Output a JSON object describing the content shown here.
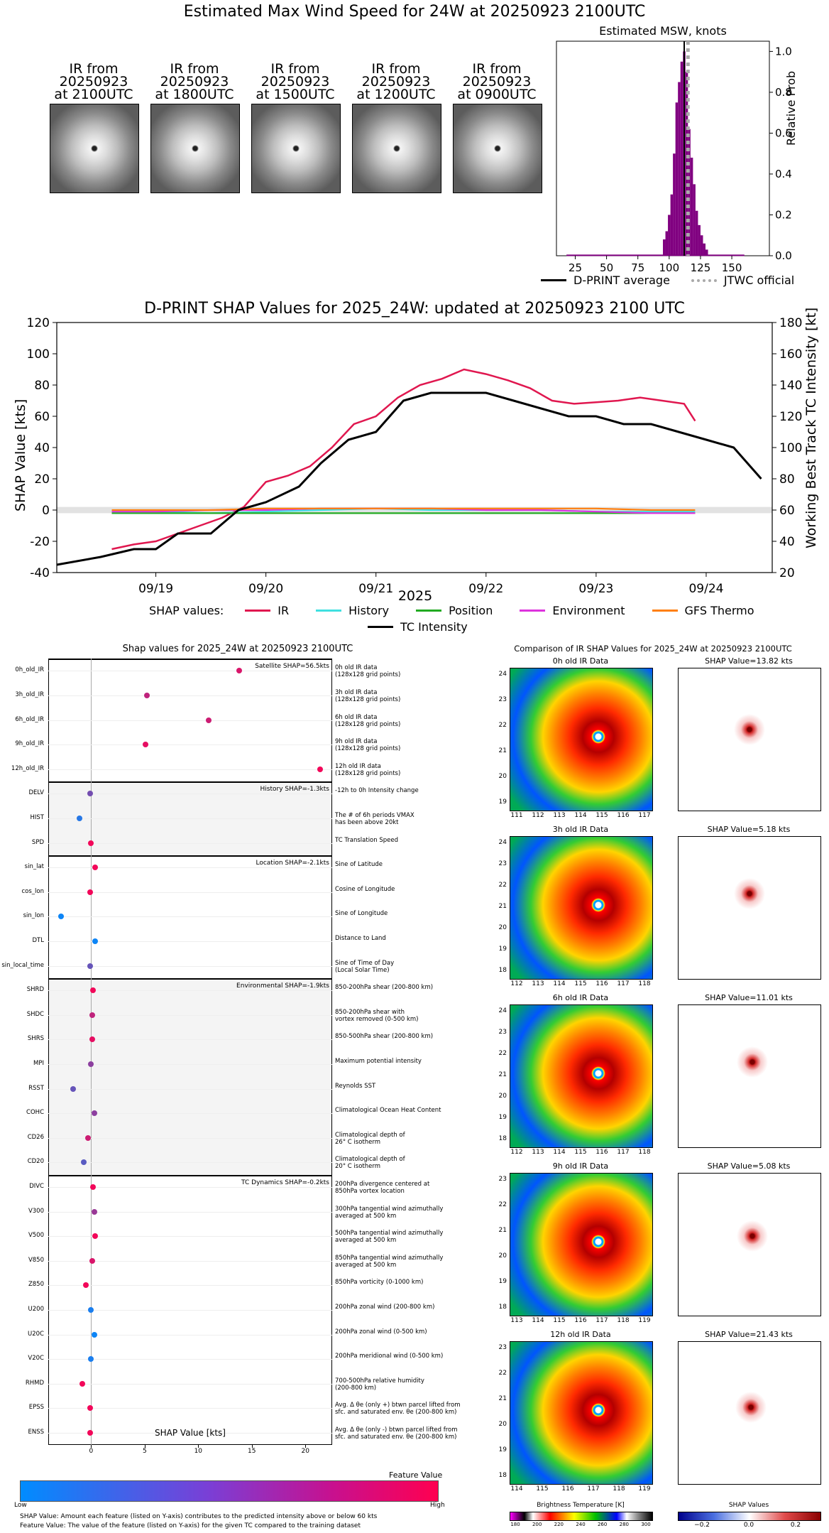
{
  "top": {
    "title": "Estimated Max Wind Speed for 24W at 20250923 2100UTC",
    "thumbnails": [
      {
        "line1": "IR from",
        "line2": "20250923",
        "line3": "at 2100UTC"
      },
      {
        "line1": "IR from",
        "line2": "20250923",
        "line3": "at 1800UTC"
      },
      {
        "line1": "IR from",
        "line2": "20250923",
        "line3": "at 1500UTC"
      },
      {
        "line1": "IR from",
        "line2": "20250923",
        "line3": "at 1200UTC"
      },
      {
        "line1": "IR from",
        "line2": "20250923",
        "line3": "at 0900UTC"
      }
    ],
    "hist_title": "Estimated MSW, knots",
    "hist_ylabel": "Relative Prob",
    "hist_xticks": [
      "25",
      "50",
      "75",
      "100",
      "125",
      "150"
    ],
    "hist_yticks": [
      "0.0",
      "0.2",
      "0.4",
      "0.6",
      "0.8",
      "1.0"
    ],
    "legend_avg": "D-PRINT average",
    "legend_jtwc": "JTWC official",
    "colors": {
      "bar": "#800080",
      "avg": "#000000",
      "jtwc": "#aaaaaa"
    }
  },
  "chart_data": [
    {
      "type": "bar",
      "title": "Estimated MSW, knots",
      "xlabel": "",
      "ylabel": "Relative Prob",
      "xlim": [
        10,
        180
      ],
      "ylim": [
        0,
        1.05
      ],
      "x": [
        96,
        98,
        100,
        102,
        104,
        106,
        108,
        110,
        112,
        114,
        116,
        118,
        120,
        122,
        124,
        126,
        128,
        130
      ],
      "values": [
        0.08,
        0.12,
        0.2,
        0.3,
        0.5,
        0.75,
        0.85,
        0.95,
        1.0,
        0.9,
        0.62,
        0.48,
        0.35,
        0.22,
        0.15,
        0.1,
        0.06,
        0.03
      ],
      "avg_line": 112,
      "jtwc_line": 115
    },
    {
      "type": "line",
      "title": "D-PRINT SHAP Values for 2025_24W: updated at 20250923 2100 UTC",
      "xlabel": "2025",
      "ylabel": "SHAP Value [kts]",
      "y2label": "Working Best Track TC Intensity [kt]",
      "xlim": [
        18.1,
        24.6
      ],
      "ylim": [
        -40,
        120
      ],
      "y2lim": [
        20,
        180
      ],
      "xticks": [
        "09/19",
        "09/20",
        "09/21",
        "09/22",
        "09/23",
        "09/24"
      ],
      "yticks": [
        "-40",
        "-20",
        "0",
        "20",
        "40",
        "60",
        "80",
        "100",
        "120"
      ],
      "y2ticks": [
        "20",
        "40",
        "60",
        "80",
        "100",
        "120",
        "140",
        "160",
        "180"
      ],
      "series": [
        {
          "name": "IR",
          "color": "#e0174f",
          "x": [
            18.6,
            18.8,
            19.0,
            19.2,
            19.4,
            19.6,
            19.8,
            20.0,
            20.2,
            20.4,
            20.6,
            20.8,
            21.0,
            21.2,
            21.4,
            21.6,
            21.8,
            22.0,
            22.2,
            22.4,
            22.6,
            22.8,
            23.0,
            23.2,
            23.4,
            23.6,
            23.8,
            23.9
          ],
          "y": [
            -25,
            -22,
            -20,
            -15,
            -10,
            -5,
            2,
            18,
            22,
            28,
            40,
            55,
            60,
            72,
            80,
            84,
            90,
            87,
            83,
            78,
            70,
            68,
            69,
            70,
            72,
            70,
            68,
            57
          ]
        },
        {
          "name": "History",
          "color": "#40e0e0",
          "x": [
            18.6,
            19.0,
            19.5,
            20.0,
            20.5,
            21.0,
            21.5,
            22.0,
            22.5,
            23.0,
            23.5,
            23.9
          ],
          "y": [
            -1,
            -1,
            -2,
            -1,
            0,
            1,
            0,
            0,
            0,
            -1,
            -1,
            -1
          ]
        },
        {
          "name": "Position",
          "color": "#22aa22",
          "x": [
            18.6,
            19.0,
            19.5,
            20.0,
            20.5,
            21.0,
            21.5,
            22.0,
            22.5,
            23.0,
            23.5,
            23.9
          ],
          "y": [
            -2,
            -2,
            -2,
            -2,
            -2,
            -2,
            -2,
            -2,
            -2,
            -2,
            -2,
            -2
          ]
        },
        {
          "name": "Environment",
          "color": "#dd33dd",
          "x": [
            18.6,
            19.0,
            19.5,
            20.0,
            20.5,
            21.0,
            21.5,
            22.0,
            22.5,
            23.0,
            23.5,
            23.9
          ],
          "y": [
            -1,
            -1,
            0,
            0,
            1,
            1,
            1,
            0,
            0,
            -1,
            -2,
            -2
          ]
        },
        {
          "name": "GFS Thermo",
          "color": "#ff7f0e",
          "x": [
            18.6,
            19.0,
            19.5,
            20.0,
            20.5,
            21.0,
            21.5,
            22.0,
            22.5,
            23.0,
            23.5,
            23.9
          ],
          "y": [
            0,
            0,
            0,
            1,
            1,
            1,
            1,
            1,
            1,
            1,
            0,
            0
          ]
        },
        {
          "name": "TC Intensity",
          "color": "#000000",
          "axis": "right",
          "x": [
            18.1,
            18.5,
            18.8,
            19.0,
            19.2,
            19.5,
            19.75,
            20.0,
            20.3,
            20.5,
            20.75,
            21.0,
            21.25,
            21.5,
            21.75,
            22.0,
            22.25,
            22.5,
            22.75,
            23.0,
            23.25,
            23.5,
            23.75,
            24.0,
            24.25,
            24.5
          ],
          "y": [
            25,
            30,
            35,
            35,
            45,
            45,
            60,
            65,
            75,
            90,
            105,
            110,
            130,
            135,
            135,
            135,
            130,
            125,
            120,
            120,
            115,
            115,
            110,
            105,
            100,
            80
          ]
        }
      ]
    }
  ],
  "mid": {
    "legend_prefix": "SHAP values:",
    "legend_items": [
      "IR",
      "History",
      "Position",
      "Environment",
      "GFS Thermo"
    ],
    "legend_tc": "TC Intensity"
  },
  "bottom": {
    "left_title": "Shap values for 2025_24W at 20250923 2100UTC",
    "right_title": "Comparison of IR SHAP Values for 2025_24W at 20250923 2100UTC",
    "xlabel": "SHAP Value [kts]",
    "xticks": [
      "0",
      "5",
      "10",
      "15",
      "20"
    ],
    "colorbar_title": "Feature Value",
    "colorbar_low": "Low",
    "colorbar_high": "High",
    "footnote1": "SHAP Value: Amount each feature (listed on Y-axis) contributes to the predicted intensity above or below 60 kts",
    "footnote2": "Feature Value: The value of the feature (listed on Y-axis) for the given TC compared to the training dataset",
    "groups": [
      {
        "label": "Satellite SHAP=56.5kts"
      },
      {
        "label": "History SHAP=-1.3kts"
      },
      {
        "label": "Location SHAP=-2.1kts"
      },
      {
        "label": "Environmental SHAP=-1.9kts"
      },
      {
        "label": "TC Dynamics SHAP=-0.2kts"
      }
    ],
    "features": [
      {
        "name": "0h_old_IR",
        "value": 13.8,
        "fv": 0.85,
        "desc": "0h old IR data\n(128x128 grid points)"
      },
      {
        "name": "3h_old_IR",
        "value": 5.2,
        "fv": 0.75,
        "desc": "3h old IR data\n(128x128 grid points)"
      },
      {
        "name": "6h_old_IR",
        "value": 11.0,
        "fv": 0.8,
        "desc": "6h old IR data\n(128x128 grid points)"
      },
      {
        "name": "9h_old_IR",
        "value": 5.1,
        "fv": 0.9,
        "desc": "9h old IR data\n(128x128 grid points)"
      },
      {
        "name": "12h_old_IR",
        "value": 21.4,
        "fv": 0.95,
        "desc": "12h old IR data\n(128x128 grid points)"
      },
      {
        "name": "DELV",
        "value": -0.1,
        "fv": 0.45,
        "desc": "-12h to 0h Intensity change"
      },
      {
        "name": "HIST",
        "value": -1.1,
        "fv": 0.15,
        "desc": "The # of 6h periods VMAX\nhas been above 20kt"
      },
      {
        "name": "SPD",
        "value": 0.0,
        "fv": 0.95,
        "desc": "TC Translation Speed"
      },
      {
        "name": "sin_lat",
        "value": 0.4,
        "fv": 0.95,
        "desc": "Sine of Latitude"
      },
      {
        "name": "cos_lon",
        "value": -0.1,
        "fv": 0.95,
        "desc": "Cosine of Longitude"
      },
      {
        "name": "sin_lon",
        "value": -2.8,
        "fv": 0.05,
        "desc": "Sine of Longitude"
      },
      {
        "name": "DTL",
        "value": 0.4,
        "fv": 0.05,
        "desc": "Distance to Land"
      },
      {
        "name": "sin_local_time",
        "value": -0.1,
        "fv": 0.4,
        "desc": "Sine of Time of Day\n(Local Solar Time)"
      },
      {
        "name": "SHRD",
        "value": 0.2,
        "fv": 0.95,
        "desc": "850-200hPa shear (200-800 km)"
      },
      {
        "name": "SHDC",
        "value": 0.1,
        "fv": 0.75,
        "desc": "850-200hPa shear with\nvortex removed (0-500 km)"
      },
      {
        "name": "SHRS",
        "value": 0.1,
        "fv": 0.9,
        "desc": "850-500hPa shear (200-800 km)"
      },
      {
        "name": "MPI",
        "value": 0.0,
        "fv": 0.55,
        "desc": "Maximum potential intensity"
      },
      {
        "name": "RSST",
        "value": -1.7,
        "fv": 0.4,
        "desc": "Reynolds SST"
      },
      {
        "name": "COHC",
        "value": 0.3,
        "fv": 0.55,
        "desc": "Climatological Ocean Heat Content"
      },
      {
        "name": "CD26",
        "value": -0.3,
        "fv": 0.8,
        "desc": "Climatological depth of\n26° C isotherm"
      },
      {
        "name": "CD20",
        "value": -0.7,
        "fv": 0.35,
        "desc": "Climatological depth of\n20° C isotherm"
      },
      {
        "name": "DIVC",
        "value": 0.2,
        "fv": 0.95,
        "desc": "200hPa divergence centered at\n850hPa vortex location"
      },
      {
        "name": "V300",
        "value": 0.3,
        "fv": 0.6,
        "desc": "300hPa tangential wind azimuthally\naveraged at 500 km"
      },
      {
        "name": "V500",
        "value": 0.4,
        "fv": 0.95,
        "desc": "500hPa tangential wind azimuthally\naveraged at 500 km"
      },
      {
        "name": "V850",
        "value": 0.1,
        "fv": 0.85,
        "desc": "850hPa tangential wind azimuthally\naveraged at 500 km"
      },
      {
        "name": "Z850",
        "value": -0.5,
        "fv": 0.95,
        "desc": "850hPa vorticity (0-1000 km)"
      },
      {
        "name": "U200",
        "value": 0.0,
        "fv": 0.1,
        "desc": "200hPa zonal wind (200-800 km)"
      },
      {
        "name": "U20C",
        "value": 0.3,
        "fv": 0.05,
        "desc": "200hPa zonal wind (0-500 km)"
      },
      {
        "name": "V20C",
        "value": 0.0,
        "fv": 0.1,
        "desc": "200hPa meridional wind (0-500 km)"
      },
      {
        "name": "RHMD",
        "value": -0.8,
        "fv": 0.95,
        "desc": "700-500hPa relative humidity\n(200-800 km)"
      },
      {
        "name": "EPSS",
        "value": -0.1,
        "fv": 0.95,
        "desc": "Avg. Δ θe (only +) btwn parcel lifted from\nsfc. and saturated env. θe (200-800 km)"
      },
      {
        "name": "ENSS",
        "value": -0.1,
        "fv": 0.95,
        "desc": "Avg. Δ θe (only -) btwn parcel lifted from\nsfc. and saturated env. θe (200-800 km)"
      }
    ],
    "panels": [
      {
        "ir_title": "0h old IR Data",
        "shap_title": "SHAP Value=13.82 kts",
        "xticks": [
          "111",
          "112",
          "113",
          "114",
          "115",
          "116",
          "117"
        ],
        "yticks": [
          "24",
          "23",
          "22",
          "21",
          "20",
          "19"
        ]
      },
      {
        "ir_title": "3h old IR Data",
        "shap_title": "SHAP Value=5.18 kts",
        "xticks": [
          "112",
          "113",
          "114",
          "115",
          "116",
          "117",
          "118"
        ],
        "yticks": [
          "24",
          "23",
          "22",
          "21",
          "20",
          "19",
          "18"
        ]
      },
      {
        "ir_title": "6h old IR Data",
        "shap_title": "SHAP Value=11.01 kts",
        "xticks": [
          "112",
          "113",
          "114",
          "115",
          "116",
          "117",
          "118"
        ],
        "yticks": [
          "24",
          "23",
          "22",
          "21",
          "20",
          "19",
          "18"
        ]
      },
      {
        "ir_title": "9h old IR Data",
        "shap_title": "SHAP Value=5.08 kts",
        "xticks": [
          "113",
          "114",
          "115",
          "116",
          "117",
          "118",
          "119"
        ],
        "yticks": [
          "23",
          "22",
          "21",
          "20",
          "19",
          "18"
        ]
      },
      {
        "ir_title": "12h old IR Data",
        "shap_title": "SHAP Value=21.43 kts",
        "xticks": [
          "114",
          "115",
          "116",
          "117",
          "118",
          "119"
        ],
        "yticks": [
          "23",
          "22",
          "21",
          "20",
          "19",
          "18"
        ]
      }
    ],
    "bt_title": "Brightness Temperature [K]",
    "bt_ticks": [
      "180",
      "200",
      "220",
      "240",
      "260",
      "280",
      "300"
    ],
    "sv_title": "SHAP Values",
    "sv_ticks": [
      "−0.2",
      "0.0",
      "0.2"
    ]
  }
}
